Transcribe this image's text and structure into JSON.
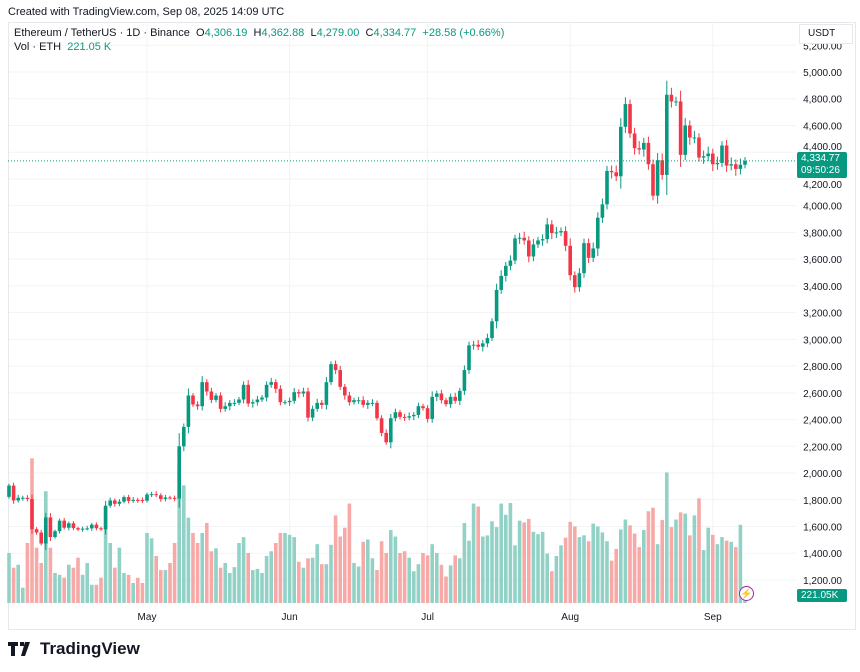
{
  "header": {
    "created": "Created with TradingView.com, Sep 08, 2025 14:09 UTC",
    "symbol": "Ethereum / TetherUS · 1D · Binance",
    "o_label": "O",
    "o": "4,306.19",
    "h_label": "H",
    "h": "4,362.88",
    "l_label": "L",
    "l": "4,279.00",
    "c_label": "C",
    "c": "4,334.77",
    "change": "+28.58 (+0.66%)",
    "vol_label": "Vol · ETH",
    "vol": "221.05 K"
  },
  "currency": "USDT",
  "current_price": {
    "price": "4,334.77",
    "countdown": "09:50:26"
  },
  "volume_label": "221.05K",
  "logo": "TradingView",
  "colors": {
    "up": "#089981",
    "down": "#F23645",
    "up_vol": "#92D2C6",
    "down_vol": "#F7A9A7"
  },
  "chart_data": {
    "type": "candlestick",
    "interval": "1D",
    "ylim": [
      1100,
      5250
    ],
    "y_ticks": [
      "5,200.00",
      "5,000.00",
      "4,800.00",
      "4,600.00",
      "4,400.00",
      "4,200.00",
      "4,000.00",
      "3,800.00",
      "3,600.00",
      "3,400.00",
      "3,200.00",
      "3,000.00",
      "2,800.00",
      "2,600.00",
      "2,400.00",
      "2,200.00",
      "2,000.00",
      "1,800.00",
      "1,600.00",
      "1,400.00",
      "1,200.00"
    ],
    "x_ticks": [
      "May",
      "Jun",
      "Jul",
      "Aug",
      "Sep"
    ],
    "grid": true,
    "first_open": 1822,
    "closes": [
      1906,
      1795,
      1815,
      1815,
      1806,
      1580,
      1555,
      1473,
      1668,
      1521,
      1565,
      1644,
      1591,
      1624,
      1588,
      1578,
      1584,
      1586,
      1614,
      1587,
      1579,
      1756,
      1795,
      1770,
      1786,
      1820,
      1792,
      1799,
      1798,
      1793,
      1840,
      1842,
      1834,
      1806,
      1817,
      1814,
      1809,
      2200,
      2345,
      2580,
      2513,
      2500,
      2680,
      2610,
      2547,
      2580,
      2480,
      2500,
      2525,
      2525,
      2550,
      2660,
      2520,
      2530,
      2550,
      2565,
      2660,
      2680,
      2630,
      2530,
      2530,
      2540,
      2605,
      2595,
      2610,
      2415,
      2480,
      2525,
      2510,
      2680,
      2815,
      2770,
      2645,
      2580,
      2530,
      2545,
      2545,
      2510,
      2525,
      2525,
      2410,
      2300,
      2230,
      2410,
      2455,
      2420,
      2415,
      2425,
      2435,
      2500,
      2485,
      2405,
      2570,
      2595,
      2545,
      2515,
      2570,
      2540,
      2615,
      2770,
      2955,
      2960,
      2945,
      2970,
      3010,
      3135,
      3370,
      3475,
      3550,
      3590,
      3755,
      3760,
      3740,
      3620,
      3710,
      3740,
      3750,
      3860,
      3795,
      3800,
      3810,
      3700,
      3480,
      3390,
      3495,
      3720,
      3610,
      3680,
      3910,
      4010,
      4260,
      4250,
      4220,
      4590,
      4760,
      4540,
      4430,
      4420,
      4470,
      4310,
      4075,
      4340,
      4230,
      4830,
      4780,
      4780,
      4380,
      4600,
      4510,
      4510,
      4360,
      4370,
      4390,
      4310,
      4320,
      4450,
      4300,
      4310,
      4275,
      4306.19,
      4334.77
    ],
    "volumes_k": [
      850,
      600,
      650,
      260,
      1020,
      2460,
      940,
      680,
      1900,
      940,
      510,
      480,
      430,
      650,
      600,
      770,
      480,
      680,
      310,
      310,
      430,
      1620,
      1020,
      600,
      940,
      510,
      480,
      340,
      430,
      340,
      1190,
      1100,
      800,
      560,
      560,
      680,
      1020,
      2330,
      2000,
      1450,
      1190,
      1020,
      1190,
      1360,
      880,
      930,
      600,
      680,
      510,
      610,
      1020,
      1120,
      850,
      560,
      580,
      510,
      800,
      880,
      1020,
      1190,
      1190,
      1160,
      1120,
      700,
      600,
      760,
      770,
      1000,
      660,
      660,
      990,
      1490,
      1130,
      1280,
      1690,
      680,
      620,
      1040,
      1080,
      760,
      560,
      1050,
      850,
      1240,
      1130,
      850,
      880,
      770,
      540,
      660,
      850,
      810,
      1000,
      850,
      650,
      450,
      640,
      810,
      760,
      1360,
      1060,
      1690,
      1640,
      1130,
      1150,
      1390,
      1290,
      1690,
      1500,
      1700,
      980,
      1400,
      1370,
      1430,
      1210,
      1170,
      1210,
      840,
      540,
      800,
      980,
      1110,
      1380,
      1300,
      1120,
      1150,
      1050,
      1350,
      1300,
      1200,
      1050,
      720,
      920,
      1250,
      1420,
      1320,
      1180,
      950,
      1240,
      1560,
      1620,
      1000,
      1410,
      2220,
      1290,
      1420,
      1540,
      1520,
      1150,
      1490,
      1780,
      900,
      1280,
      1160,
      1000,
      1120,
      1060,
      1040,
      950,
      1330,
      221.05
    ],
    "last": {
      "open": 4306.19,
      "high": 4362.88,
      "low": 4279.0,
      "close": 4334.77
    }
  }
}
